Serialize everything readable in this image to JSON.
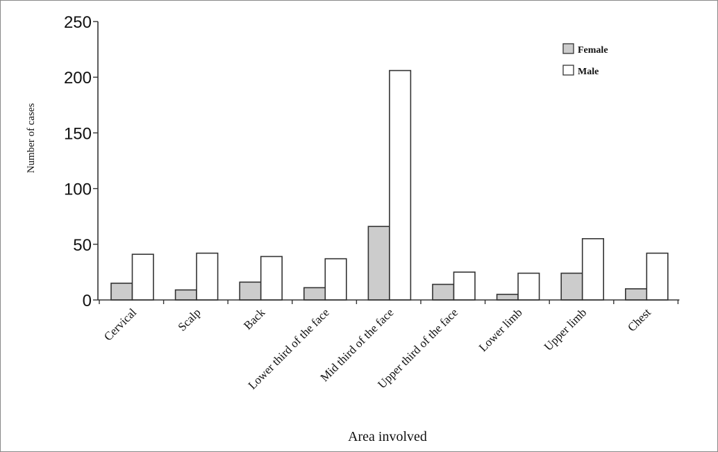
{
  "chart_data": {
    "type": "bar",
    "title": "",
    "xlabel": "Area involved",
    "ylabel": "Number of cases",
    "ylim": [
      0,
      250
    ],
    "yticks": [
      0,
      50,
      100,
      150,
      200,
      250
    ],
    "categories": [
      "Cervical",
      "Scalp",
      "Back",
      "Lower third of the face",
      "Mid third of the face",
      "Upper third of the face",
      "Lower limb",
      "Upper limb",
      "Chest"
    ],
    "series": [
      {
        "name": "Female",
        "color": "#cccccc",
        "values": [
          15,
          9,
          16,
          11,
          66,
          14,
          5,
          24,
          10
        ]
      },
      {
        "name": "Male",
        "color": "#ffffff",
        "values": [
          41,
          42,
          39,
          37,
          206,
          25,
          24,
          55,
          42
        ]
      }
    ],
    "legend_position": "top-right",
    "grid": false
  }
}
